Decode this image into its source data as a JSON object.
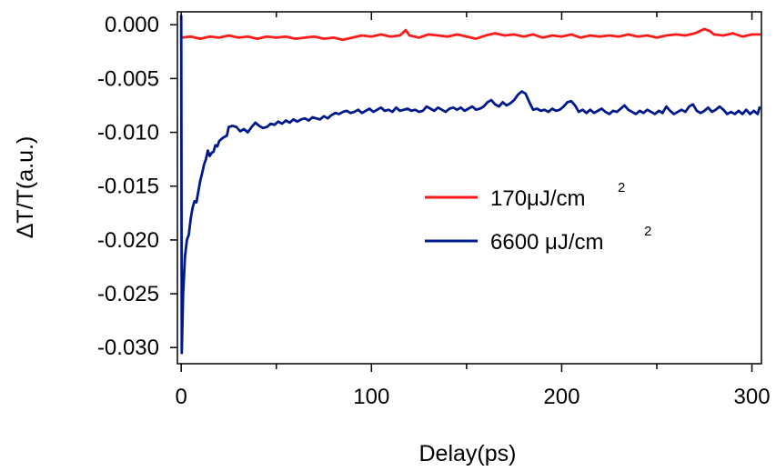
{
  "chart_data": {
    "type": "line",
    "title": "",
    "xlabel": "Delay(ps)",
    "ylabel": "ΔT/T(a.u.)",
    "xlim": [
      -2,
      305
    ],
    "ylim": [
      -0.0315,
      0.0012
    ],
    "x_ticks": [
      0,
      100,
      200,
      300
    ],
    "x_tick_labels": [
      "0",
      "100",
      "200",
      "300"
    ],
    "x_minor_ticks": [
      50,
      150,
      250
    ],
    "y_ticks": [
      0.0,
      -0.005,
      -0.01,
      -0.015,
      -0.02,
      -0.025,
      -0.03
    ],
    "y_tick_labels": [
      "0.000",
      "-0.005",
      "-0.010",
      "-0.015",
      "-0.020",
      "-0.025",
      "-0.030"
    ],
    "grid": false,
    "legend_position": "center-right",
    "series": [
      {
        "name": "170μJ/cm",
        "name_superscript": "2",
        "color": "#ff1a1a",
        "points": [
          [
            0,
            -0.0012
          ],
          [
            5,
            -0.0011
          ],
          [
            10,
            -0.0013
          ],
          [
            15,
            -0.0011
          ],
          [
            20,
            -0.0012
          ],
          [
            25,
            -0.001
          ],
          [
            30,
            -0.0012
          ],
          [
            35,
            -0.0011
          ],
          [
            40,
            -0.0013
          ],
          [
            45,
            -0.0011
          ],
          [
            50,
            -0.0012
          ],
          [
            55,
            -0.0011
          ],
          [
            60,
            -0.0013
          ],
          [
            65,
            -0.0012
          ],
          [
            70,
            -0.0011
          ],
          [
            75,
            -0.0013
          ],
          [
            80,
            -0.0012
          ],
          [
            85,
            -0.0014
          ],
          [
            90,
            -0.0012
          ],
          [
            95,
            -0.001
          ],
          [
            100,
            -0.0011
          ],
          [
            105,
            -0.0009
          ],
          [
            110,
            -0.0011
          ],
          [
            115,
            -0.001
          ],
          [
            118,
            -0.0005
          ],
          [
            120,
            -0.001
          ],
          [
            125,
            -0.0012
          ],
          [
            130,
            -0.0009
          ],
          [
            135,
            -0.001
          ],
          [
            140,
            -0.0011
          ],
          [
            145,
            -0.0009
          ],
          [
            150,
            -0.0011
          ],
          [
            155,
            -0.0013
          ],
          [
            160,
            -0.001
          ],
          [
            165,
            -0.0008
          ],
          [
            170,
            -0.001
          ],
          [
            175,
            -0.0009
          ],
          [
            180,
            -0.0011
          ],
          [
            185,
            -0.0009
          ],
          [
            190,
            -0.0012
          ],
          [
            195,
            -0.001
          ],
          [
            200,
            -0.0011
          ],
          [
            205,
            -0.0009
          ],
          [
            210,
            -0.0012
          ],
          [
            215,
            -0.001
          ],
          [
            220,
            -0.0011
          ],
          [
            225,
            -0.001
          ],
          [
            230,
            -0.0011
          ],
          [
            235,
            -0.0009
          ],
          [
            240,
            -0.0011
          ],
          [
            245,
            -0.001
          ],
          [
            250,
            -0.0012
          ],
          [
            255,
            -0.001
          ],
          [
            260,
            -0.0009
          ],
          [
            265,
            -0.001
          ],
          [
            270,
            -0.0008
          ],
          [
            275,
            -0.0004
          ],
          [
            278,
            -0.0006
          ],
          [
            280,
            -0.0009
          ],
          [
            285,
            -0.001
          ],
          [
            290,
            -0.0008
          ],
          [
            295,
            -0.0011
          ],
          [
            300,
            -0.0009
          ],
          [
            304,
            -0.0009
          ]
        ]
      },
      {
        "name": "6600 μJ/cm",
        "name_superscript": "2",
        "color": "#001a8c",
        "points": [
          [
            0,
            0.0008
          ],
          [
            0.3,
            -0.0305
          ],
          [
            1,
            -0.025
          ],
          [
            2,
            -0.0215
          ],
          [
            3,
            -0.02
          ],
          [
            4,
            -0.0195
          ],
          [
            5,
            -0.018
          ],
          [
            6,
            -0.017
          ],
          [
            7,
            -0.0164
          ],
          [
            8,
            -0.0165
          ],
          [
            9,
            -0.0155
          ],
          [
            10,
            -0.0145
          ],
          [
            11,
            -0.0138
          ],
          [
            12,
            -0.013
          ],
          [
            13,
            -0.0125
          ],
          [
            14,
            -0.0117
          ],
          [
            15,
            -0.0122
          ],
          [
            16,
            -0.0119
          ],
          [
            17,
            -0.0118
          ],
          [
            18,
            -0.0112
          ],
          [
            19,
            -0.0113
          ],
          [
            20,
            -0.0108
          ],
          [
            22,
            -0.0105
          ],
          [
            24,
            -0.0103
          ],
          [
            25,
            -0.0095
          ],
          [
            27,
            -0.0094
          ],
          [
            29,
            -0.0095
          ],
          [
            31,
            -0.0099
          ],
          [
            33,
            -0.0097
          ],
          [
            35,
            -0.01
          ],
          [
            37,
            -0.0095
          ],
          [
            39,
            -0.0091
          ],
          [
            41,
            -0.0094
          ],
          [
            43,
            -0.0096
          ],
          [
            45,
            -0.0095
          ],
          [
            47,
            -0.0092
          ],
          [
            49,
            -0.0093
          ],
          [
            51,
            -0.009
          ],
          [
            53,
            -0.0092
          ],
          [
            55,
            -0.0089
          ],
          [
            57,
            -0.0091
          ],
          [
            59,
            -0.0088
          ],
          [
            61,
            -0.009
          ],
          [
            63,
            -0.0088
          ],
          [
            65,
            -0.0087
          ],
          [
            67,
            -0.0089
          ],
          [
            69,
            -0.0086
          ],
          [
            71,
            -0.0087
          ],
          [
            73,
            -0.0088
          ],
          [
            75,
            -0.0085
          ],
          [
            77,
            -0.0087
          ],
          [
            79,
            -0.0084
          ],
          [
            81,
            -0.0082
          ],
          [
            83,
            -0.0083
          ],
          [
            85,
            -0.0081
          ],
          [
            87,
            -0.008
          ],
          [
            89,
            -0.0082
          ],
          [
            91,
            -0.0081
          ],
          [
            93,
            -0.0079
          ],
          [
            95,
            -0.0082
          ],
          [
            97,
            -0.008
          ],
          [
            99,
            -0.0078
          ],
          [
            101,
            -0.0081
          ],
          [
            103,
            -0.0079
          ],
          [
            105,
            -0.0077
          ],
          [
            107,
            -0.008
          ],
          [
            109,
            -0.0079
          ],
          [
            111,
            -0.0081
          ],
          [
            113,
            -0.0077
          ],
          [
            115,
            -0.008
          ],
          [
            117,
            -0.0079
          ],
          [
            119,
            -0.0078
          ],
          [
            121,
            -0.008
          ],
          [
            123,
            -0.0079
          ],
          [
            125,
            -0.0081
          ],
          [
            127,
            -0.008
          ],
          [
            129,
            -0.0076
          ],
          [
            131,
            -0.0078
          ],
          [
            133,
            -0.008
          ],
          [
            135,
            -0.0077
          ],
          [
            137,
            -0.0079
          ],
          [
            139,
            -0.0081
          ],
          [
            141,
            -0.0078
          ],
          [
            143,
            -0.0077
          ],
          [
            145,
            -0.0079
          ],
          [
            147,
            -0.0077
          ],
          [
            149,
            -0.008
          ],
          [
            151,
            -0.0078
          ],
          [
            153,
            -0.0076
          ],
          [
            155,
            -0.0079
          ],
          [
            157,
            -0.0078
          ],
          [
            159,
            -0.0076
          ],
          [
            161,
            -0.0072
          ],
          [
            163,
            -0.007
          ],
          [
            165,
            -0.0074
          ],
          [
            167,
            -0.0076
          ],
          [
            169,
            -0.0072
          ],
          [
            171,
            -0.0075
          ],
          [
            173,
            -0.0073
          ],
          [
            175,
            -0.007
          ],
          [
            177,
            -0.0065
          ],
          [
            179,
            -0.0062
          ],
          [
            181,
            -0.0064
          ],
          [
            183,
            -0.0072
          ],
          [
            185,
            -0.0079
          ],
          [
            187,
            -0.0078
          ],
          [
            189,
            -0.008
          ],
          [
            191,
            -0.0079
          ],
          [
            193,
            -0.0081
          ],
          [
            195,
            -0.0078
          ],
          [
            197,
            -0.008
          ],
          [
            199,
            -0.0079
          ],
          [
            201,
            -0.0076
          ],
          [
            203,
            -0.0072
          ],
          [
            205,
            -0.0071
          ],
          [
            207,
            -0.0075
          ],
          [
            209,
            -0.0081
          ],
          [
            211,
            -0.0079
          ],
          [
            213,
            -0.0082
          ],
          [
            215,
            -0.0079
          ],
          [
            217,
            -0.0082
          ],
          [
            219,
            -0.008
          ],
          [
            221,
            -0.0078
          ],
          [
            223,
            -0.0081
          ],
          [
            225,
            -0.0083
          ],
          [
            227,
            -0.008
          ],
          [
            229,
            -0.0081
          ],
          [
            231,
            -0.0078
          ],
          [
            233,
            -0.0075
          ],
          [
            235,
            -0.0079
          ],
          [
            237,
            -0.0081
          ],
          [
            239,
            -0.0083
          ],
          [
            241,
            -0.008
          ],
          [
            243,
            -0.0082
          ],
          [
            245,
            -0.0079
          ],
          [
            247,
            -0.0081
          ],
          [
            249,
            -0.0083
          ],
          [
            251,
            -0.008
          ],
          [
            253,
            -0.0082
          ],
          [
            255,
            -0.0076
          ],
          [
            257,
            -0.008
          ],
          [
            259,
            -0.0083
          ],
          [
            261,
            -0.0081
          ],
          [
            263,
            -0.0079
          ],
          [
            265,
            -0.0081
          ],
          [
            267,
            -0.0076
          ],
          [
            269,
            -0.0074
          ],
          [
            271,
            -0.008
          ],
          [
            273,
            -0.0082
          ],
          [
            275,
            -0.008
          ],
          [
            277,
            -0.0077
          ],
          [
            279,
            -0.0081
          ],
          [
            281,
            -0.0079
          ],
          [
            283,
            -0.0076
          ],
          [
            285,
            -0.0079
          ],
          [
            287,
            -0.0083
          ],
          [
            289,
            -0.0081
          ],
          [
            291,
            -0.0083
          ],
          [
            293,
            -0.008
          ],
          [
            295,
            -0.0083
          ],
          [
            297,
            -0.0079
          ],
          [
            299,
            -0.0083
          ],
          [
            301,
            -0.008
          ],
          [
            303,
            -0.0083
          ],
          [
            304,
            -0.0077
          ]
        ]
      }
    ]
  }
}
